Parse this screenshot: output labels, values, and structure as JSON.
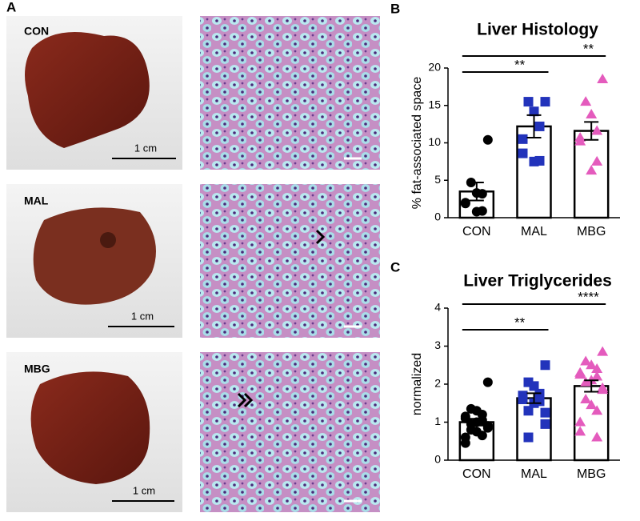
{
  "panel_a": {
    "label": "A",
    "rows": [
      {
        "name": "CON",
        "scale": "1 cm"
      },
      {
        "name": "MAL",
        "scale": "1 cm"
      },
      {
        "name": "MBG",
        "scale": "1 cm"
      }
    ]
  },
  "chart_data": [
    {
      "type": "bar",
      "panel": "B",
      "title": "Liver Histology",
      "ylabel": "% fat-associated space",
      "categories": [
        "CON",
        "MAL",
        "MBG"
      ],
      "values": [
        3.5,
        12.2,
        11.6
      ],
      "errors": [
        1.2,
        1.5,
        1.2
      ],
      "points": [
        [
          10.4,
          4.7,
          3.3,
          3.2,
          2.0,
          1.9,
          0.9,
          0.8
        ],
        [
          15.5,
          15.5,
          14.2,
          12.2,
          10.5,
          8.6,
          7.6,
          7.5
        ],
        [
          18.5,
          15.5,
          13.8,
          11.6,
          10.7,
          10.2,
          7.5,
          6.3
        ]
      ],
      "colors": [
        "#000000",
        "#2233bb",
        "#e45bbd"
      ],
      "markers": [
        "circle",
        "square",
        "triangle"
      ],
      "significance": [
        "**",
        "**"
      ],
      "ylim": [
        0,
        20
      ],
      "yticks": [
        0,
        5,
        10,
        15,
        20
      ]
    },
    {
      "type": "bar",
      "panel": "C",
      "title": "Liver Triglycerides",
      "ylabel": "normalized",
      "categories": [
        "CON",
        "MAL",
        "MBG"
      ],
      "values": [
        1.0,
        1.63,
        1.95
      ],
      "errors": [
        0.09,
        0.13,
        0.15
      ],
      "points": [
        [
          2.05,
          1.35,
          1.3,
          1.2,
          1.15,
          1.1,
          1.05,
          1.0,
          0.95,
          0.9,
          0.85,
          0.8,
          0.75,
          0.65,
          0.6,
          0.45
        ],
        [
          2.5,
          2.05,
          1.95,
          1.75,
          1.7,
          1.6,
          1.55,
          1.5,
          1.3,
          1.25,
          0.95,
          0.6
        ],
        [
          2.85,
          2.6,
          2.5,
          2.4,
          2.3,
          2.25,
          2.2,
          2.1,
          2.05,
          1.9,
          1.85,
          1.6,
          1.45,
          1.3,
          1.0,
          0.75,
          0.6
        ]
      ],
      "colors": [
        "#000000",
        "#2233bb",
        "#e45bbd"
      ],
      "markers": [
        "circle",
        "square",
        "triangle"
      ],
      "significance": [
        "**",
        "****"
      ],
      "ylim": [
        0,
        4
      ],
      "yticks": [
        0,
        1,
        2,
        3,
        4
      ]
    }
  ]
}
